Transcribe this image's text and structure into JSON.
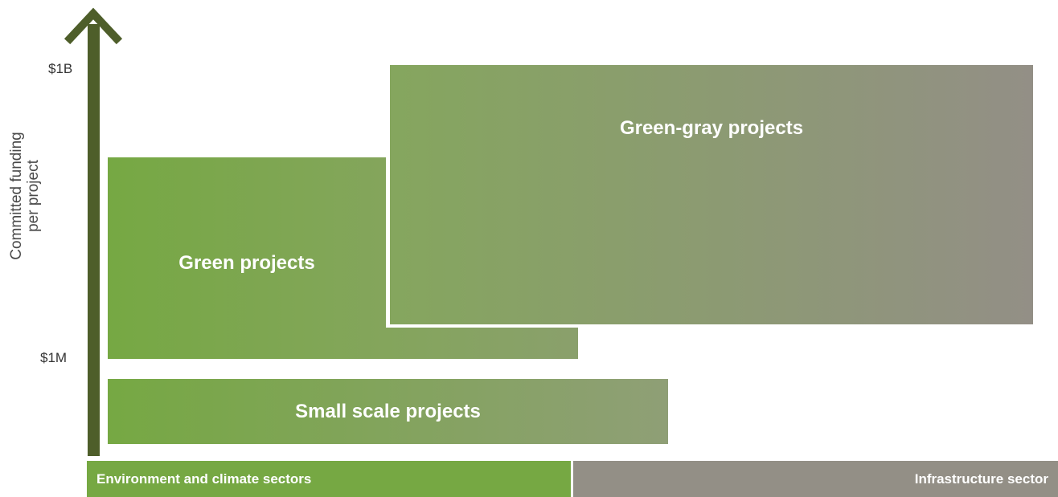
{
  "axis": {
    "title_line1": "Committed funding",
    "title_line2": "per project",
    "ticks": {
      "top": "$1B",
      "bottom": "$1M"
    }
  },
  "blocks": {
    "green": {
      "label": "Green projects"
    },
    "green_gray": {
      "label": "Green-gray projects"
    },
    "small_scale": {
      "label": "Small scale projects"
    }
  },
  "sectors": {
    "environment": {
      "label": "Environment and climate sectors"
    },
    "infrastructure": {
      "label": "Infrastructure sector"
    }
  },
  "colors": {
    "green": "#76a843",
    "gray": "#938f86",
    "axis": "#4e5e2a"
  }
}
